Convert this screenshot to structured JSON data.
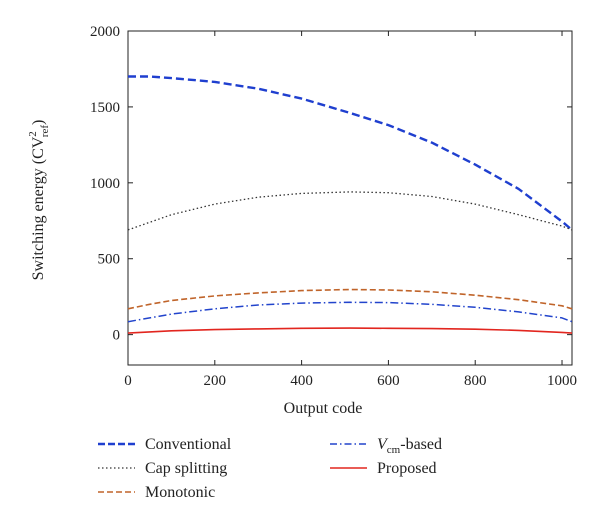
{
  "chart_data": {
    "type": "line",
    "xlabel": "Output code",
    "ylabel_main": "Switching energy (CV",
    "ylabel_sup": "2",
    "ylabel_sub": "ref",
    "ylabel_end": ")",
    "xlim": [
      0,
      1023
    ],
    "ylim": [
      -200,
      2000
    ],
    "xticks": [
      0,
      200,
      400,
      600,
      800,
      1000
    ],
    "yticks": [
      0,
      500,
      1000,
      1500,
      2000
    ],
    "grid": false,
    "legend_position": "below",
    "x": [
      0,
      50,
      100,
      200,
      300,
      400,
      512,
      600,
      700,
      800,
      900,
      1000,
      1023
    ],
    "series": [
      {
        "name": "Conventional",
        "color": "#1f3fcf",
        "style": "dashed",
        "values": [
          1700,
          1700,
          1690,
          1665,
          1620,
          1555,
          1460,
          1380,
          1265,
          1120,
          960,
          745,
          690
        ]
      },
      {
        "name": "Cap splitting",
        "color": "#333333",
        "style": "dotted",
        "values": [
          690,
          740,
          790,
          860,
          905,
          930,
          940,
          935,
          910,
          860,
          790,
          715,
          690
        ]
      },
      {
        "name": "Monotonic",
        "color": "#c0642a",
        "style": "dashed",
        "values": [
          170,
          200,
          225,
          255,
          275,
          290,
          297,
          294,
          282,
          260,
          230,
          190,
          170
        ]
      },
      {
        "name": "V_cm-based",
        "label_italic": "V",
        "label_sub": "cm",
        "label_rest": "-based",
        "color": "#2244cc",
        "style": "dashdot",
        "values": [
          85,
          110,
          135,
          170,
          195,
          208,
          213,
          211,
          200,
          180,
          150,
          110,
          85
        ]
      },
      {
        "name": "Proposed",
        "color": "#e2261f",
        "style": "solid",
        "values": [
          10,
          18,
          25,
          33,
          38,
          42,
          43,
          42,
          40,
          36,
          28,
          15,
          10
        ]
      }
    ]
  }
}
